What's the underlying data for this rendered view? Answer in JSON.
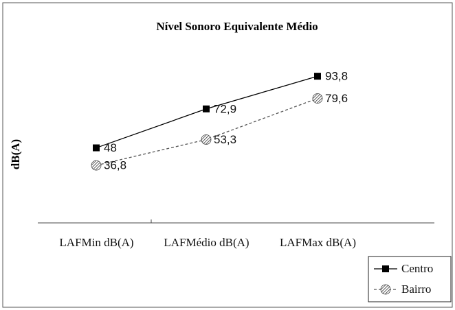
{
  "chart_data": {
    "type": "line",
    "title": "Nível Sonoro Equivalente Médio",
    "y_label": "dB(A)",
    "categories": [
      "LAFMin dB(A)",
      "LAFMédio dB(A)",
      "LAFMax dB(A)"
    ],
    "series": [
      {
        "name": "Centro",
        "color": "#000000",
        "values": [
          48,
          72.9,
          93.8
        ],
        "value_labels": [
          "48",
          "72,9",
          "93,8"
        ]
      },
      {
        "name": "Bairro",
        "color": "#555555",
        "values": [
          36.8,
          53.3,
          79.6
        ],
        "value_labels": [
          "36,8",
          "53,3",
          "79,6"
        ]
      }
    ],
    "ylim": [
      0,
      100
    ],
    "legend": "bottom-right"
  }
}
